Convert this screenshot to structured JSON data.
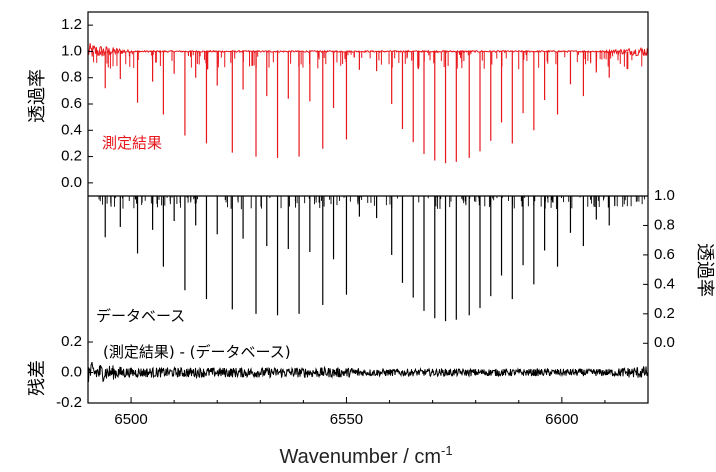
{
  "chart_data": {
    "type": "line",
    "x_axis": {
      "label": "Wavenumber / cm",
      "label_superscript": "-1",
      "range": [
        6490,
        6620
      ],
      "ticks": [
        6500,
        6550,
        6600
      ],
      "tick_labels": [
        "6500",
        "6550",
        "6600"
      ]
    },
    "top_panel": {
      "ylabel": "透過率",
      "ylim": [
        -0.1,
        1.3
      ],
      "ticks": [
        "0.0",
        "0.2",
        "0.4",
        "0.6",
        "0.8",
        "1.0",
        "1.2"
      ],
      "annotation": "測定結果",
      "color": "#e8161b",
      "baseline": 1.0,
      "lines": [
        {
          "x": 6494.0,
          "t": 0.72
        },
        {
          "x": 6497.5,
          "t": 0.79
        },
        {
          "x": 6501.5,
          "t": 0.61
        },
        {
          "x": 6505.0,
          "t": 0.77
        },
        {
          "x": 6507.5,
          "t": 0.52
        },
        {
          "x": 6510.0,
          "t": 0.83
        },
        {
          "x": 6512.5,
          "t": 0.36
        },
        {
          "x": 6515.0,
          "t": 0.8
        },
        {
          "x": 6517.5,
          "t": 0.3
        },
        {
          "x": 6520.0,
          "t": 0.74
        },
        {
          "x": 6523.5,
          "t": 0.23
        },
        {
          "x": 6526.0,
          "t": 0.71
        },
        {
          "x": 6529.0,
          "t": 0.2
        },
        {
          "x": 6531.5,
          "t": 0.66
        },
        {
          "x": 6534.0,
          "t": 0.19
        },
        {
          "x": 6536.5,
          "t": 0.64
        },
        {
          "x": 6539.0,
          "t": 0.2
        },
        {
          "x": 6541.5,
          "t": 0.62
        },
        {
          "x": 6544.5,
          "t": 0.26
        },
        {
          "x": 6547.0,
          "t": 0.57
        },
        {
          "x": 6550.0,
          "t": 0.33
        },
        {
          "x": 6553.0,
          "t": 0.86
        },
        {
          "x": 6557.0,
          "t": 0.85
        },
        {
          "x": 6560.5,
          "t": 0.6
        },
        {
          "x": 6563.0,
          "t": 0.41
        },
        {
          "x": 6565.5,
          "t": 0.31
        },
        {
          "x": 6568.0,
          "t": 0.22
        },
        {
          "x": 6570.5,
          "t": 0.17
        },
        {
          "x": 6573.0,
          "t": 0.15
        },
        {
          "x": 6575.5,
          "t": 0.16
        },
        {
          "x": 6578.5,
          "t": 0.19
        },
        {
          "x": 6581.0,
          "t": 0.24
        },
        {
          "x": 6583.5,
          "t": 0.32
        },
        {
          "x": 6586.0,
          "t": 0.46
        },
        {
          "x": 6588.5,
          "t": 0.3
        },
        {
          "x": 6591.0,
          "t": 0.53
        },
        {
          "x": 6593.5,
          "t": 0.4
        },
        {
          "x": 6596.0,
          "t": 0.63
        },
        {
          "x": 6599.0,
          "t": 0.52
        },
        {
          "x": 6602.0,
          "t": 0.75
        },
        {
          "x": 6605.0,
          "t": 0.66
        },
        {
          "x": 6608.0,
          "t": 0.84
        },
        {
          "x": 6611.0,
          "t": 0.8
        }
      ]
    },
    "middle_panel": {
      "ylabel": "透過率",
      "ylim": [
        -0.1,
        1.0
      ],
      "ticks": [
        "0.0",
        "0.2",
        "0.4",
        "0.6",
        "0.8",
        "1.0"
      ],
      "annotation": "データベース",
      "color": "#000000",
      "baseline": 1.0,
      "lines": [
        {
          "x": 6494.0,
          "t": 0.72
        },
        {
          "x": 6497.5,
          "t": 0.79
        },
        {
          "x": 6501.5,
          "t": 0.61
        },
        {
          "x": 6505.0,
          "t": 0.77
        },
        {
          "x": 6507.5,
          "t": 0.52
        },
        {
          "x": 6510.0,
          "t": 0.83
        },
        {
          "x": 6512.5,
          "t": 0.36
        },
        {
          "x": 6515.0,
          "t": 0.8
        },
        {
          "x": 6517.5,
          "t": 0.3
        },
        {
          "x": 6520.0,
          "t": 0.74
        },
        {
          "x": 6523.5,
          "t": 0.23
        },
        {
          "x": 6526.0,
          "t": 0.71
        },
        {
          "x": 6529.0,
          "t": 0.2
        },
        {
          "x": 6531.5,
          "t": 0.66
        },
        {
          "x": 6534.0,
          "t": 0.19
        },
        {
          "x": 6536.5,
          "t": 0.64
        },
        {
          "x": 6539.0,
          "t": 0.2
        },
        {
          "x": 6541.5,
          "t": 0.62
        },
        {
          "x": 6544.5,
          "t": 0.26
        },
        {
          "x": 6547.0,
          "t": 0.57
        },
        {
          "x": 6550.0,
          "t": 0.33
        },
        {
          "x": 6553.0,
          "t": 0.86
        },
        {
          "x": 6557.0,
          "t": 0.85
        },
        {
          "x": 6560.5,
          "t": 0.6
        },
        {
          "x": 6563.0,
          "t": 0.41
        },
        {
          "x": 6565.5,
          "t": 0.31
        },
        {
          "x": 6568.0,
          "t": 0.22
        },
        {
          "x": 6570.5,
          "t": 0.17
        },
        {
          "x": 6573.0,
          "t": 0.15
        },
        {
          "x": 6575.5,
          "t": 0.16
        },
        {
          "x": 6578.5,
          "t": 0.19
        },
        {
          "x": 6581.0,
          "t": 0.24
        },
        {
          "x": 6583.5,
          "t": 0.32
        },
        {
          "x": 6586.0,
          "t": 0.46
        },
        {
          "x": 6588.5,
          "t": 0.3
        },
        {
          "x": 6591.0,
          "t": 0.53
        },
        {
          "x": 6593.5,
          "t": 0.4
        },
        {
          "x": 6596.0,
          "t": 0.63
        },
        {
          "x": 6599.0,
          "t": 0.52
        },
        {
          "x": 6602.0,
          "t": 0.75
        },
        {
          "x": 6605.0,
          "t": 0.66
        },
        {
          "x": 6608.0,
          "t": 0.84
        },
        {
          "x": 6611.0,
          "t": 0.8
        }
      ]
    },
    "bottom_panel": {
      "ylabel": "残差",
      "ylim": [
        -0.2,
        0.2
      ],
      "ticks": [
        "-0.2",
        "0.0",
        "0.2"
      ],
      "annotation": "(測定結果) - (データベース)",
      "color": "#000000",
      "noise_amplitude": 0.03
    }
  }
}
